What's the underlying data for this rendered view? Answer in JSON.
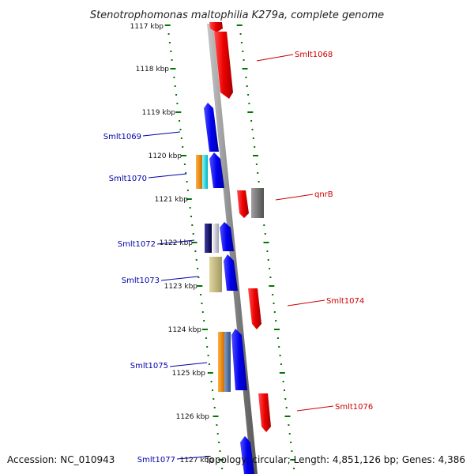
{
  "title": "Stenotrophomonas maltophilia K279a, complete genome",
  "accession": "Accession: NC_010943",
  "topology": "Topology: circular; Length: 4,851,126 bp; Genes: 4,386",
  "ruler": {
    "ticks": [
      "1117 kbp",
      "1118 kbp",
      "1119 kbp",
      "1120 kbp",
      "1121 kbp",
      "1122 kbp",
      "1123 kbp",
      "1124 kbp",
      "1125 kbp",
      "1126 kbp",
      "1127 kbp"
    ]
  },
  "genes": {
    "labels": [
      "Smlt1068",
      "Smlt1069",
      "Smlt1070",
      "qnrB",
      "Smlt1072",
      "Smlt1073",
      "Smlt1074",
      "Smlt1075",
      "Smlt1076",
      "Smlt1077"
    ]
  },
  "colors": {
    "forward_strand": "#ee0000",
    "reverse_strand": "#0000ee",
    "backbone": "#888888",
    "tick_marks": "#007700",
    "forward_label": "#cc0000",
    "reverse_label": "#0000aa"
  }
}
